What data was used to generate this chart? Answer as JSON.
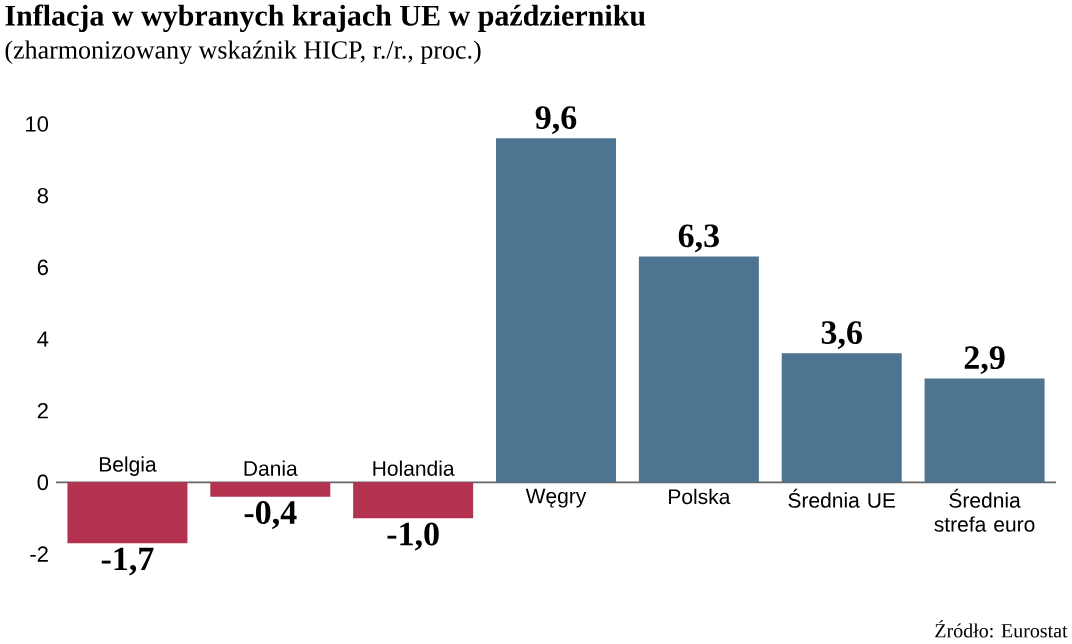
{
  "chart_data": {
    "type": "bar",
    "title": "Inflacja w wybranych krajach UE w październiku",
    "subtitle": "(zharmonizowany wskaźnik HICP, r./r., proc.)",
    "categories": [
      "Belgia",
      "Dania",
      "Holandia",
      "Węgry",
      "Polska",
      "Średnia UE",
      "Średnia strefa euro"
    ],
    "values": [
      -1.7,
      -0.4,
      -1.0,
      9.6,
      6.3,
      3.6,
      2.9
    ],
    "value_labels": [
      "-1,7",
      "-0,4",
      "-1,0",
      "9,6",
      "6,3",
      "3,6",
      "2,9"
    ],
    "colors": [
      "#b3324f",
      "#b3324f",
      "#b3324f",
      "#4d7490",
      "#4d7490",
      "#4d7490",
      "#4d7490"
    ],
    "ylim": [
      -2,
      10
    ],
    "yticks": [
      -2,
      0,
      2,
      4,
      6,
      8,
      10
    ],
    "grid": false,
    "annotations": [
      "Źródło: Eurostat"
    ]
  }
}
